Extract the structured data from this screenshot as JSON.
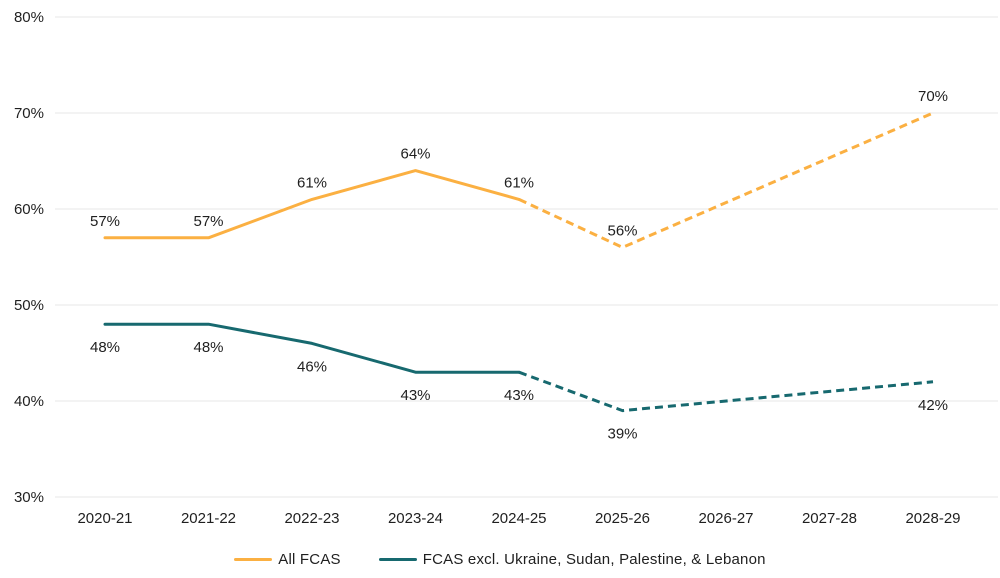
{
  "chart_data": {
    "type": "line",
    "title": "",
    "categories": [
      "2020-21",
      "2021-22",
      "2022-23",
      "2023-24",
      "2024-25",
      "2025-26",
      "2026-27",
      "2027-28",
      "2028-29"
    ],
    "ylim": [
      30,
      80
    ],
    "yticks": [
      {
        "value": 30,
        "label": "30%"
      },
      {
        "value": 40,
        "label": "40%"
      },
      {
        "value": 50,
        "label": "50%"
      },
      {
        "value": 60,
        "label": "60%"
      },
      {
        "value": 70,
        "label": "70%"
      },
      {
        "value": 80,
        "label": "80%"
      }
    ],
    "grid": "horizontal",
    "legend_position": "bottom",
    "forecast_dashed_from_index": 4,
    "series": [
      {
        "name": "All FCAS",
        "color": "#FBB042",
        "values": [
          57,
          57,
          61,
          64,
          61,
          56,
          null,
          null,
          70
        ],
        "point_labels": [
          "57%",
          "57%",
          "61%",
          "64%",
          "61%",
          "56%",
          "",
          "",
          "70%"
        ],
        "label_position": "above"
      },
      {
        "name": "FCAS excl. Ukraine, Sudan, Palestine, & Lebanon",
        "color": "#17696F",
        "values": [
          48,
          48,
          46,
          43,
          43,
          39,
          null,
          null,
          42
        ],
        "point_labels": [
          "48%",
          "48%",
          "46%",
          "43%",
          "43%",
          "39%",
          "",
          "",
          "42%"
        ],
        "label_position": "below"
      }
    ],
    "colors": {
      "grid": "#E7E7E7",
      "text": "#1F1F1F",
      "background": "#FFFFFF"
    }
  }
}
